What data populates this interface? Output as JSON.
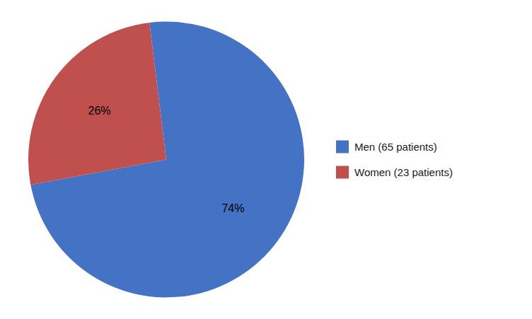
{
  "chart_data": {
    "type": "pie",
    "categories": [
      "Men (65 patients)",
      "Women (23 patients)"
    ],
    "values": [
      74,
      26
    ],
    "value_labels": [
      "74%",
      "26%"
    ],
    "colors": [
      "#4472C4",
      "#C0504D"
    ],
    "data_labels": true,
    "legend": "right"
  }
}
